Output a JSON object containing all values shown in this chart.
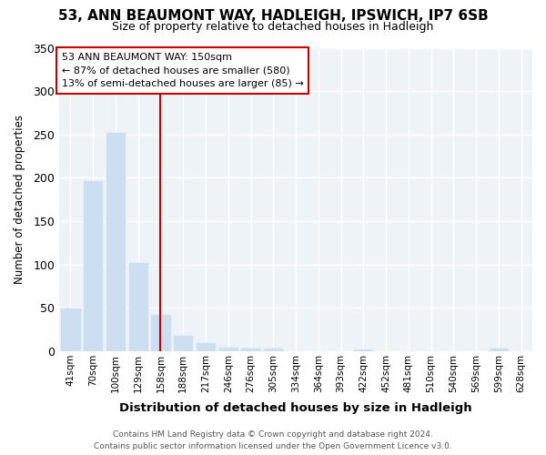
{
  "title": "53, ANN BEAUMONT WAY, HADLEIGH, IPSWICH, IP7 6SB",
  "subtitle": "Size of property relative to detached houses in Hadleigh",
  "xlabel": "Distribution of detached houses by size in Hadleigh",
  "ylabel": "Number of detached properties",
  "categories": [
    "41sqm",
    "70sqm",
    "100sqm",
    "129sqm",
    "158sqm",
    "188sqm",
    "217sqm",
    "246sqm",
    "276sqm",
    "305sqm",
    "334sqm",
    "364sqm",
    "393sqm",
    "422sqm",
    "452sqm",
    "481sqm",
    "510sqm",
    "540sqm",
    "569sqm",
    "599sqm",
    "628sqm"
  ],
  "values": [
    50,
    197,
    253,
    103,
    43,
    19,
    10,
    5,
    4,
    4,
    0,
    0,
    0,
    3,
    0,
    0,
    0,
    0,
    0,
    4,
    0
  ],
  "bar_color": "#ccdff0",
  "vline_index": 4,
  "annotation_line1": "53 ANN BEAUMONT WAY: 150sqm",
  "annotation_line2": "← 87% of detached houses are smaller (580)",
  "annotation_line3": "13% of semi-detached houses are larger (85) →",
  "annotation_box_color": "#ffffff",
  "annotation_box_edge_color": "#cc0000",
  "vline_color": "#cc0000",
  "footer_line1": "Contains HM Land Registry data © Crown copyright and database right 2024.",
  "footer_line2": "Contains public sector information licensed under the Open Government Licence v3.0.",
  "ylim": [
    0,
    350
  ],
  "yticks": [
    0,
    50,
    100,
    150,
    200,
    250,
    300,
    350
  ],
  "bg_color": "#ffffff",
  "plot_bg_color": "#eef3f8",
  "grid_color": "#ffffff",
  "title_fontsize": 11,
  "subtitle_fontsize": 9
}
